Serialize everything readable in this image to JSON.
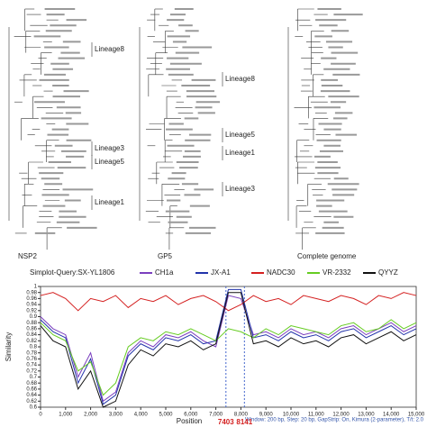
{
  "trees": [
    {
      "name": "NSP2",
      "lineages": [
        "Lineage8",
        "Lineage3",
        "Lineage5",
        "Lineage1"
      ]
    },
    {
      "name": "GP5",
      "lineages": [
        "Lineage8",
        "Lineage5",
        "Lineage1",
        "Lineage3"
      ]
    },
    {
      "name": "Complete genome",
      "lineages": []
    }
  ],
  "chart_data": {
    "type": "line",
    "title": "Simplot-Query:SX-YL1806",
    "x_label": "Position",
    "y_label": "Similarity",
    "x": [
      0,
      500,
      1000,
      1500,
      2000,
      2500,
      3000,
      3500,
      4000,
      4500,
      5000,
      5500,
      6000,
      6500,
      7000,
      7500,
      8000,
      8500,
      9000,
      9500,
      10000,
      10500,
      11000,
      11500,
      12000,
      12500,
      13000,
      13500,
      14000,
      14500,
      15000
    ],
    "series": [
      {
        "name": "CH1a",
        "color": "#7b3fbf",
        "values": [
          0.9,
          0.86,
          0.84,
          0.7,
          0.78,
          0.62,
          0.65,
          0.78,
          0.82,
          0.8,
          0.84,
          0.83,
          0.85,
          0.82,
          0.8,
          0.97,
          0.96,
          0.84,
          0.85,
          0.83,
          0.86,
          0.84,
          0.85,
          0.83,
          0.86,
          0.87,
          0.84,
          0.86,
          0.88,
          0.85,
          0.87
        ]
      },
      {
        "name": "JX-A1",
        "color": "#2233aa",
        "values": [
          0.89,
          0.85,
          0.83,
          0.68,
          0.76,
          0.61,
          0.64,
          0.77,
          0.81,
          0.79,
          0.83,
          0.82,
          0.84,
          0.81,
          0.82,
          0.99,
          0.99,
          0.83,
          0.84,
          0.82,
          0.85,
          0.83,
          0.84,
          0.82,
          0.85,
          0.86,
          0.83,
          0.85,
          0.87,
          0.84,
          0.86
        ]
      },
      {
        "name": "NADC30",
        "color": "#d42020",
        "values": [
          0.97,
          0.98,
          0.96,
          0.92,
          0.96,
          0.95,
          0.97,
          0.93,
          0.96,
          0.95,
          0.97,
          0.94,
          0.96,
          0.97,
          0.95,
          0.92,
          0.94,
          0.97,
          0.95,
          0.96,
          0.94,
          0.97,
          0.96,
          0.95,
          0.97,
          0.96,
          0.94,
          0.97,
          0.96,
          0.98,
          0.97
        ]
      },
      {
        "name": "VR-2332",
        "color": "#66cc22",
        "values": [
          0.88,
          0.84,
          0.82,
          0.72,
          0.75,
          0.64,
          0.68,
          0.8,
          0.83,
          0.82,
          0.85,
          0.84,
          0.86,
          0.84,
          0.82,
          0.86,
          0.85,
          0.83,
          0.86,
          0.84,
          0.87,
          0.86,
          0.85,
          0.84,
          0.87,
          0.88,
          0.85,
          0.86,
          0.89,
          0.86,
          0.88
        ]
      },
      {
        "name": "QYYZ",
        "color": "#111111",
        "values": [
          0.87,
          0.82,
          0.8,
          0.66,
          0.72,
          0.6,
          0.62,
          0.74,
          0.79,
          0.77,
          0.81,
          0.8,
          0.82,
          0.79,
          0.81,
          0.98,
          0.98,
          0.81,
          0.82,
          0.8,
          0.83,
          0.81,
          0.82,
          0.8,
          0.83,
          0.84,
          0.81,
          0.83,
          0.85,
          0.82,
          0.84
        ]
      }
    ],
    "xlim": [
      0,
      15000
    ],
    "xticks": [
      {
        "value": 0,
        "label": "0"
      },
      {
        "value": 1000,
        "label": "1,000"
      },
      {
        "value": 2000,
        "label": "2,000"
      },
      {
        "value": 3000,
        "label": "3,000"
      },
      {
        "value": 4000,
        "label": "4,000"
      },
      {
        "value": 5000,
        "label": "5,000"
      },
      {
        "value": 6000,
        "label": "6,000"
      },
      {
        "value": 7000,
        "label": "7,000"
      },
      {
        "value": 8000,
        "label": "8,000"
      },
      {
        "value": 9000,
        "label": "9,000"
      },
      {
        "value": 10000,
        "label": "10,000"
      },
      {
        "value": 11000,
        "label": "11,000"
      },
      {
        "value": 12000,
        "label": "12,000"
      },
      {
        "value": 13000,
        "label": "13,000"
      },
      {
        "value": 14000,
        "label": "14,000"
      },
      {
        "value": 15000,
        "label": "15,000"
      }
    ],
    "ylim": [
      0.6,
      1.0
    ],
    "yticks": [
      0.6,
      0.62,
      0.64,
      0.66,
      0.68,
      0.7,
      0.72,
      0.74,
      0.76,
      0.78,
      0.8,
      0.82,
      0.84,
      0.86,
      0.88,
      0.9,
      0.92,
      0.94,
      0.96,
      0.98,
      1
    ],
    "breakpoints": [
      {
        "value": 7403,
        "label": "7403"
      },
      {
        "value": 8141,
        "label": "8141"
      }
    ],
    "footnote": "Window: 200 bp, Step: 20 bp, GapStrip: On, Kimura (2-parameter), T/t: 2.0"
  }
}
